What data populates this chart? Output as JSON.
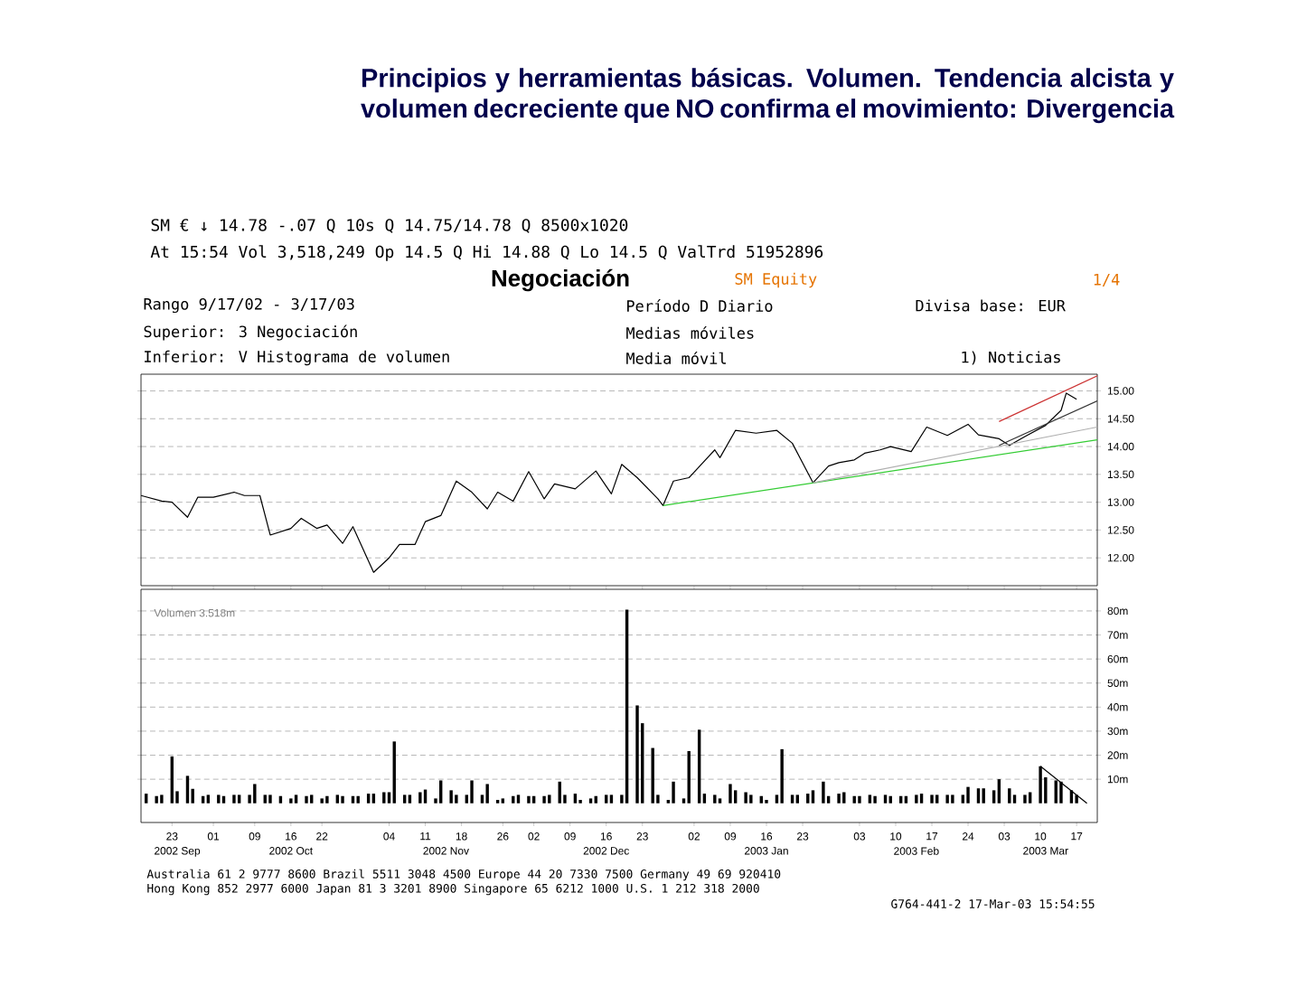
{
  "chart_data": [
    {
      "type": "line",
      "title": "Principios y herramientas básicas. Volumen. Tendencia alcista y volumen decreciente que NO confirma el movimiento: Divergencia",
      "annotations": [
        "SM € ↓ 14.78 -.07 Q 10s Q 14.75/14.78 Q 8500x1020",
        "At 15:54 Vol 3,518,249 Op 14.5 Q Hi 14.88 Q Lo 14.5 Q ValTrd 51952896",
        "Negociación",
        "SM Equity",
        "1/4",
        "Rango 9/17/02 - 3/17/03",
        "Período D Diario",
        "Divisa base: EUR",
        "Superior: 3 Negociación",
        "Medias móviles",
        "Inferior: V Histograma de volumen",
        "Media móvil",
        "1) Noticias"
      ],
      "xlim": [
        "2002-09-17",
        "2003-03-21"
      ],
      "ylim": [
        11.5,
        15.3
      ],
      "yticks": [
        {
          "value": 12,
          "label": "12.00"
        },
        {
          "value": 12.5,
          "label": "12.50"
        },
        {
          "value": 13,
          "label": "13.00"
        },
        {
          "value": 13.5,
          "label": "13.50"
        },
        {
          "value": 14,
          "label": "14.00"
        },
        {
          "value": 14.5,
          "label": "14.50"
        },
        {
          "value": 15,
          "label": "15.00"
        }
      ],
      "grid": "y",
      "tick_labels": "y",
      "series": [
        {
          "color": "#000000",
          "x": [
            "2002-09-17",
            "2002-09-21",
            "2002-09-23",
            "2002-09-26",
            "2002-09-28",
            "2002-10-01",
            "2002-10-05",
            "2002-10-07",
            "2002-10-10",
            "2002-10-12",
            "2002-10-16",
            "2002-10-18",
            "2002-10-21",
            "2002-10-23",
            "2002-10-26",
            "2002-10-28",
            "2002-11-01",
            "2002-11-04",
            "2002-11-06",
            "2002-11-09",
            "2002-11-11",
            "2002-11-14",
            "2002-11-17",
            "2002-11-20",
            "2002-11-23",
            "2002-11-25",
            "2002-11-28",
            "2002-12-01",
            "2002-12-04",
            "2002-12-06",
            "2002-12-10",
            "2002-12-14",
            "2002-12-17",
            "2002-12-19",
            "2002-12-22",
            "2002-12-26",
            "2002-12-27",
            "2002-12-29",
            "2003-01-01",
            "2003-01-06",
            "2003-01-07",
            "2003-01-10",
            "2003-01-14",
            "2003-01-18",
            "2003-01-21",
            "2003-01-25",
            "2003-01-28",
            "2003-01-30",
            "2003-02-02",
            "2003-02-04",
            "2003-02-07",
            "2003-02-09",
            "2003-02-13",
            "2003-02-16",
            "2003-02-20",
            "2003-02-24",
            "2003-02-26",
            "2003-03-02",
            "2003-03-04",
            "2003-03-07",
            "2003-03-11",
            "2003-03-14",
            "2003-03-15",
            "2003-03-17"
          ],
          "values": [
            13.12,
            13.02,
            13.0,
            12.73,
            13.09,
            13.09,
            13.18,
            13.12,
            13.12,
            12.41,
            12.53,
            12.71,
            12.53,
            12.59,
            12.26,
            12.56,
            11.74,
            12.0,
            12.24,
            12.24,
            12.65,
            12.76,
            13.38,
            13.18,
            12.88,
            13.18,
            13.02,
            13.55,
            13.06,
            13.33,
            13.24,
            13.56,
            13.15,
            13.68,
            13.44,
            13.06,
            12.94,
            13.38,
            13.44,
            13.94,
            13.8,
            14.29,
            14.24,
            14.29,
            14.06,
            13.35,
            13.65,
            13.71,
            13.76,
            13.88,
            13.94,
            14.0,
            13.91,
            14.35,
            14.2,
            14.4,
            14.21,
            14.14,
            14.02,
            14.18,
            14.38,
            14.65,
            14.96,
            14.85
          ]
        },
        {
          "color": "#33cc33",
          "x": [
            "2002-12-27",
            "2003-03-21"
          ],
          "values": [
            12.94,
            14.12
          ]
        },
        {
          "color": "#b0b0b0",
          "x": [
            "2003-01-25",
            "2003-03-21"
          ],
          "values": [
            13.35,
            14.35
          ]
        },
        {
          "color": "#cc3333",
          "x": [
            "2003-03-02",
            "2003-03-21"
          ],
          "values": [
            14.45,
            15.27
          ]
        },
        {
          "color": "#333333",
          "x": [
            "2003-03-02",
            "2003-03-21"
          ],
          "values": [
            14.02,
            14.82
          ]
        }
      ]
    },
    {
      "type": "bar",
      "annotations": [
        "Volumen 3.518m",
        "Australia 61 2 9777 8600   Brazil 5511 3048 4500   Europe 44 20 7330 7500   Germany 49 69 920410",
        "Hong Kong 852 2977 6000 Japan 81 3 3201 8900 Singapore 65 6212 1000 U.S. 1 212 318 2000",
        "G764-441-2 17-Mar-03 15:54:55"
      ],
      "xlim": [
        "2002-09-17",
        "2003-03-21"
      ],
      "ylim": [
        -8,
        89
      ],
      "yticks": [
        {
          "value": 10,
          "label": "10m"
        },
        {
          "value": 20,
          "label": "20m"
        },
        {
          "value": 30,
          "label": "30m"
        },
        {
          "value": 40,
          "label": "40m"
        },
        {
          "value": 50,
          "label": "50m"
        },
        {
          "value": 60,
          "label": "60m"
        },
        {
          "value": 70,
          "label": "70m"
        },
        {
          "value": 80,
          "label": "80m"
        }
      ],
      "xticks": [
        {
          "value": "2002-09-23",
          "label": "23"
        },
        {
          "value": "2002-10-01",
          "label": "01"
        },
        {
          "value": "2002-10-09",
          "label": "09"
        },
        {
          "value": "2002-10-16",
          "label": "16"
        },
        {
          "value": "2002-10-22",
          "label": "22"
        },
        {
          "value": "2002-11-04",
          "label": "04"
        },
        {
          "value": "2002-11-11",
          "label": "11"
        },
        {
          "value": "2002-11-18",
          "label": "18"
        },
        {
          "value": "2002-11-26",
          "label": "26"
        },
        {
          "value": "2002-12-02",
          "label": "02"
        },
        {
          "value": "2002-12-09",
          "label": "09"
        },
        {
          "value": "2002-12-16",
          "label": "16"
        },
        {
          "value": "2002-12-23",
          "label": "23"
        },
        {
          "value": "2003-01-02",
          "label": "02"
        },
        {
          "value": "2003-01-09",
          "label": "09"
        },
        {
          "value": "2003-01-16",
          "label": "16"
        },
        {
          "value": "2003-01-23",
          "label": "23"
        },
        {
          "value": "2003-02-03",
          "label": "03"
        },
        {
          "value": "2003-02-10",
          "label": "10"
        },
        {
          "value": "2003-02-17",
          "label": "17"
        },
        {
          "value": "2003-02-24",
          "label": "24"
        },
        {
          "value": "2003-03-03",
          "label": "03"
        },
        {
          "value": "2003-03-10",
          "label": "10"
        },
        {
          "value": "2003-03-17",
          "label": "17"
        }
      ],
      "x2lim": [
        "2002-09-17",
        "2003-03-21"
      ],
      "x2ticks": [
        {
          "value": "2002-09-24",
          "label": "2002 Sep"
        },
        {
          "value": "2002-10-16",
          "label": "2002 Oct"
        },
        {
          "value": "2002-11-15",
          "label": "2002 Nov"
        },
        {
          "value": "2002-12-16",
          "label": "2002 Dec"
        },
        {
          "value": "2003-01-16",
          "label": "2003 Jan"
        },
        {
          "value": "2003-02-14",
          "label": "2003 Feb"
        },
        {
          "value": "2003-03-11",
          "label": "2003 Mar"
        }
      ],
      "grid": "y",
      "series": [
        {
          "type": "bar",
          "color": "#000000",
          "x": [
            "2002-09-18",
            "2002-09-20",
            "2002-09-21",
            "2002-09-23",
            "2002-09-24",
            "2002-09-26",
            "2002-09-27",
            "2002-09-29",
            "2002-09-30",
            "2002-10-02",
            "2002-10-03",
            "2002-10-05",
            "2002-10-06",
            "2002-10-08",
            "2002-10-09",
            "2002-10-11",
            "2002-10-12",
            "2002-10-14",
            "2002-10-16",
            "2002-10-17",
            "2002-10-19",
            "2002-10-20",
            "2002-10-22",
            "2002-10-23",
            "2002-10-25",
            "2002-10-26",
            "2002-10-28",
            "2002-10-29",
            "2002-10-31",
            "2002-11-01",
            "2002-11-03",
            "2002-11-04",
            "2002-11-05",
            "2002-11-07",
            "2002-11-08",
            "2002-11-10",
            "2002-11-11",
            "2002-11-13",
            "2002-11-14",
            "2002-11-16",
            "2002-11-17",
            "2002-11-19",
            "2002-11-20",
            "2002-11-22",
            "2002-11-23",
            "2002-11-25",
            "2002-11-26",
            "2002-11-28",
            "2002-11-29",
            "2002-12-01",
            "2002-12-02",
            "2002-12-04",
            "2002-12-05",
            "2002-12-07",
            "2002-12-08",
            "2002-12-10",
            "2002-12-11",
            "2002-12-13",
            "2002-12-14",
            "2002-12-16",
            "2002-12-17",
            "2002-12-19",
            "2002-12-20",
            "2002-12-22",
            "2002-12-23",
            "2002-12-25",
            "2002-12-26",
            "2002-12-28",
            "2002-12-29",
            "2002-12-31",
            "2003-01-01",
            "2003-01-03",
            "2003-01-04",
            "2003-01-06",
            "2003-01-07",
            "2003-01-09",
            "2003-01-10",
            "2003-01-12",
            "2003-01-13",
            "2003-01-15",
            "2003-01-16",
            "2003-01-18",
            "2003-01-19",
            "2003-01-21",
            "2003-01-22",
            "2003-01-24",
            "2003-01-25",
            "2003-01-27",
            "2003-01-28",
            "2003-01-30",
            "2003-01-31",
            "2003-02-02",
            "2003-02-03",
            "2003-02-05",
            "2003-02-06",
            "2003-02-08",
            "2003-02-09",
            "2003-02-11",
            "2003-02-12",
            "2003-02-14",
            "2003-02-15",
            "2003-02-17",
            "2003-02-18",
            "2003-02-20",
            "2003-02-21",
            "2003-02-23",
            "2003-02-24",
            "2003-02-26",
            "2003-02-27",
            "2003-03-01",
            "2003-03-02",
            "2003-03-04",
            "2003-03-05",
            "2003-03-07",
            "2003-03-08",
            "2003-03-10",
            "2003-03-11",
            "2003-03-13",
            "2003-03-14",
            "2003-03-16",
            "2003-03-17"
          ],
          "values": [
            4,
            3,
            3.5,
            19.5,
            5,
            11.4,
            6,
            3,
            3.5,
            3.5,
            3,
            3.5,
            3.5,
            3.5,
            8,
            3.5,
            3.5,
            3,
            2,
            3.5,
            3,
            3.5,
            2,
            3,
            3.5,
            3,
            3,
            3,
            4,
            4,
            4.6,
            4.6,
            25.7,
            3.5,
            3.5,
            4.6,
            5.7,
            2,
            9.5,
            5.4,
            3.5,
            3.5,
            9.5,
            3.5,
            8,
            1.4,
            2,
            3,
            3.5,
            3,
            3,
            3,
            3.5,
            9,
            3.5,
            4,
            1.4,
            2,
            3,
            3.5,
            3.5,
            3.5,
            80.5,
            40.7,
            33.3,
            23,
            3.5,
            1.4,
            9,
            2,
            21.7,
            30.6,
            4,
            3.5,
            2,
            8,
            5.4,
            4.6,
            3.5,
            3,
            1.4,
            3.5,
            22.5,
            3.5,
            3.5,
            4,
            5.4,
            9,
            3,
            4,
            4.6,
            3,
            3,
            3.5,
            3,
            3.5,
            3,
            3,
            3,
            3.5,
            4,
            3.5,
            3.5,
            3.5,
            3.5,
            3.5,
            6.8,
            6.2,
            6.2,
            5.4,
            10,
            6.2,
            3.5,
            3.5,
            4.6,
            15.4,
            10.8,
            9.5,
            9,
            5.4,
            3.5
          ]
        },
        {
          "type": "line",
          "color": "#000000",
          "x": [
            "2003-03-10",
            "2003-03-19"
          ],
          "values": [
            15.4,
            0
          ]
        }
      ]
    }
  ]
}
